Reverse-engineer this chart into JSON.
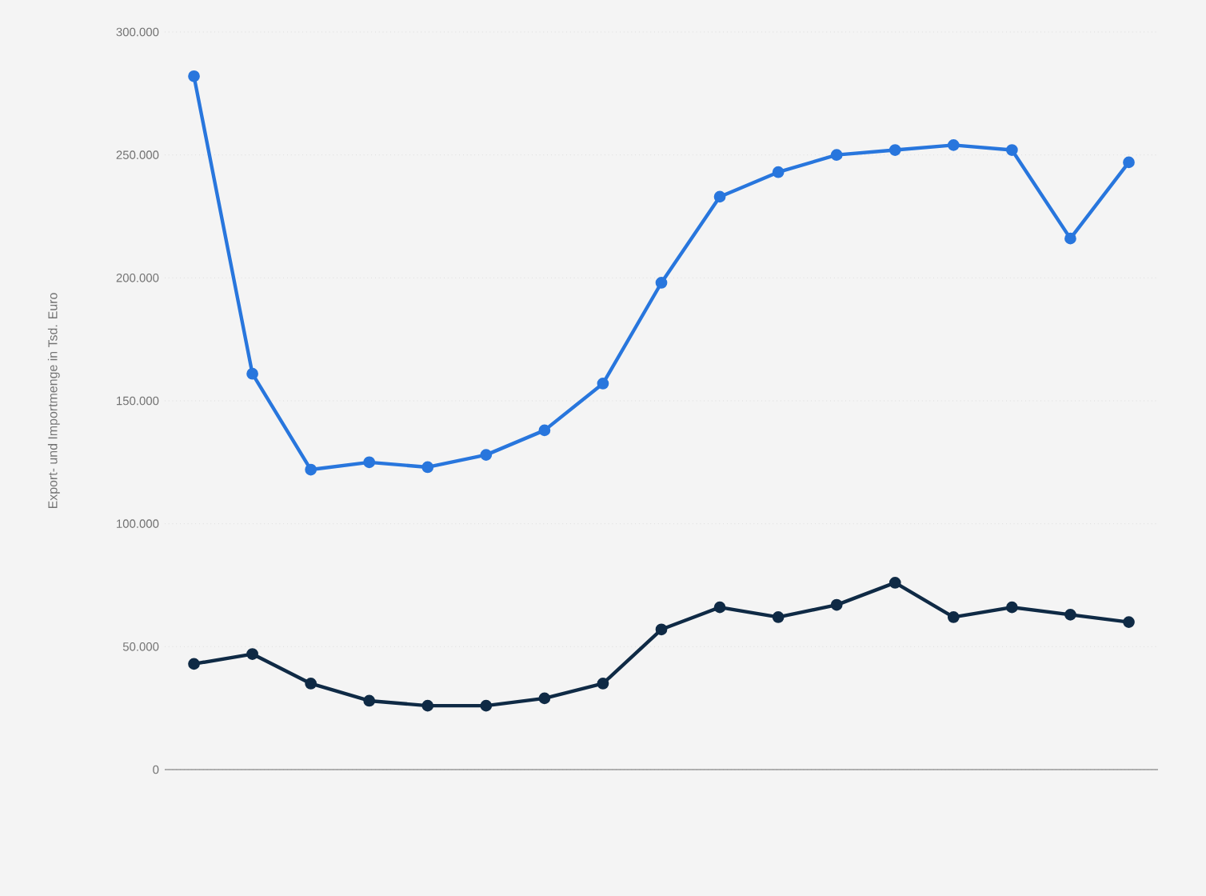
{
  "chart_data": {
    "type": "line",
    "ylabel": "Export- und Importmenge in Tsd. Euro",
    "categories": [
      null,
      null,
      null,
      null,
      null,
      null,
      null,
      null,
      null,
      null,
      null,
      null,
      null,
      null,
      null,
      null,
      null
    ],
    "series": [
      {
        "color": "#2876dd",
        "values": [
          282000,
          161000,
          122000,
          125000,
          123000,
          128000,
          138000,
          157000,
          198000,
          233000,
          243000,
          250000,
          252000,
          254000,
          252000,
          216000,
          247000
        ]
      },
      {
        "color": "#0f2a45",
        "values": [
          43000,
          47000,
          35000,
          28000,
          26000,
          26000,
          29000,
          35000,
          57000,
          66000,
          62000,
          67000,
          76000,
          62000,
          66000,
          63000,
          60000
        ]
      }
    ],
    "ylim": [
      0,
      300000
    ],
    "yticks": [
      0,
      {
        "value": 50000,
        "label": "50.000"
      },
      {
        "value": 100000,
        "label": "100.000"
      },
      {
        "value": 150000,
        "label": "150.000"
      },
      {
        "value": 200000,
        "label": "200.000"
      },
      {
        "value": 250000,
        "label": "250.000"
      },
      {
        "value": 300000,
        "label": "300.000"
      }
    ],
    "grid": "y",
    "marker": "circle",
    "line_style": "solid"
  }
}
